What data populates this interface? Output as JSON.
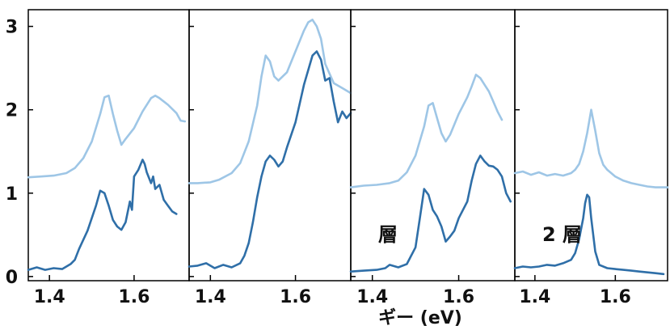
{
  "chart_data": {
    "type": "line",
    "xlabel": "ギー (eV)",
    "ylim": [
      -0.05,
      3.2
    ],
    "yticks": [
      0,
      1,
      2,
      3
    ],
    "xticks": [
      1.4,
      1.6
    ],
    "grid": false,
    "colors": {
      "light": "#9ec6e6",
      "dark": "#2f6fa8",
      "axis": "#000000"
    },
    "panels": [
      {
        "annotation": "",
        "xlim": [
          1.35,
          1.73
        ],
        "series": [
          {
            "name": "",
            "color": "light",
            "x": [
              1.35,
              1.38,
              1.41,
              1.44,
              1.46,
              1.48,
              1.5,
              1.52,
              1.53,
              1.54,
              1.55,
              1.56,
              1.57,
              1.58,
              1.6,
              1.62,
              1.64,
              1.65,
              1.66,
              1.68,
              1.7,
              1.71,
              1.72
            ],
            "y": [
              1.19,
              1.2,
              1.21,
              1.24,
              1.3,
              1.42,
              1.62,
              1.95,
              2.15,
              2.17,
              1.95,
              1.75,
              1.58,
              1.65,
              1.78,
              1.98,
              2.14,
              2.17,
              2.14,
              2.06,
              1.96,
              1.87,
              1.86
            ]
          },
          {
            "name": "",
            "color": "dark",
            "x": [
              1.35,
              1.37,
              1.39,
              1.41,
              1.43,
              1.45,
              1.46,
              1.47,
              1.49,
              1.51,
              1.52,
              1.53,
              1.54,
              1.55,
              1.56,
              1.57,
              1.58,
              1.59,
              1.595,
              1.6,
              1.61,
              1.62,
              1.625,
              1.63,
              1.64,
              1.645,
              1.65,
              1.66,
              1.67,
              1.68,
              1.69,
              1.7
            ],
            "y": [
              0.08,
              0.11,
              0.08,
              0.1,
              0.09,
              0.15,
              0.2,
              0.33,
              0.55,
              0.85,
              1.03,
              1.0,
              0.85,
              0.68,
              0.6,
              0.56,
              0.65,
              0.9,
              0.8,
              1.2,
              1.28,
              1.4,
              1.35,
              1.25,
              1.12,
              1.2,
              1.05,
              1.1,
              0.92,
              0.85,
              0.78,
              0.75
            ]
          }
        ]
      },
      {
        "annotation": "",
        "xlim": [
          1.35,
          1.73
        ],
        "series": [
          {
            "name": "",
            "color": "light",
            "x": [
              1.35,
              1.37,
              1.4,
              1.42,
              1.45,
              1.47,
              1.49,
              1.51,
              1.52,
              1.53,
              1.54,
              1.55,
              1.56,
              1.58,
              1.6,
              1.62,
              1.63,
              1.64,
              1.65,
              1.66,
              1.67,
              1.69,
              1.71,
              1.73
            ],
            "y": [
              1.12,
              1.12,
              1.13,
              1.16,
              1.24,
              1.36,
              1.62,
              2.05,
              2.4,
              2.65,
              2.58,
              2.4,
              2.35,
              2.45,
              2.7,
              2.95,
              3.05,
              3.08,
              3.0,
              2.85,
              2.55,
              2.32,
              2.26,
              2.2
            ]
          },
          {
            "name": "",
            "color": "dark",
            "x": [
              1.35,
              1.37,
              1.39,
              1.41,
              1.43,
              1.45,
              1.47,
              1.48,
              1.49,
              1.5,
              1.51,
              1.52,
              1.53,
              1.54,
              1.55,
              1.56,
              1.57,
              1.58,
              1.6,
              1.62,
              1.64,
              1.65,
              1.66,
              1.67,
              1.68,
              1.69,
              1.7,
              1.71,
              1.72,
              1.73
            ],
            "y": [
              0.12,
              0.13,
              0.16,
              0.1,
              0.14,
              0.11,
              0.16,
              0.25,
              0.4,
              0.65,
              0.95,
              1.2,
              1.38,
              1.45,
              1.4,
              1.32,
              1.38,
              1.55,
              1.85,
              2.3,
              2.65,
              2.7,
              2.6,
              2.35,
              2.38,
              2.1,
              1.85,
              1.98,
              1.9,
              1.96
            ]
          }
        ]
      },
      {
        "annotation": "層",
        "xlim": [
          1.35,
          1.73
        ],
        "series": [
          {
            "name": "",
            "color": "light",
            "x": [
              1.35,
              1.38,
              1.41,
              1.44,
              1.46,
              1.48,
              1.5,
              1.52,
              1.53,
              1.54,
              1.55,
              1.56,
              1.57,
              1.58,
              1.6,
              1.62,
              1.63,
              1.64,
              1.65,
              1.66,
              1.67,
              1.68,
              1.69,
              1.7
            ],
            "y": [
              1.07,
              1.09,
              1.1,
              1.12,
              1.15,
              1.25,
              1.45,
              1.8,
              2.05,
              2.08,
              1.9,
              1.72,
              1.62,
              1.7,
              1.95,
              2.15,
              2.28,
              2.42,
              2.38,
              2.3,
              2.22,
              2.1,
              1.98,
              1.88
            ]
          },
          {
            "name": "",
            "color": "dark",
            "x": [
              1.35,
              1.38,
              1.41,
              1.43,
              1.44,
              1.46,
              1.48,
              1.5,
              1.51,
              1.52,
              1.53,
              1.54,
              1.55,
              1.56,
              1.57,
              1.58,
              1.59,
              1.6,
              1.62,
              1.63,
              1.64,
              1.65,
              1.66,
              1.67,
              1.68,
              1.69,
              1.7,
              1.71,
              1.72
            ],
            "y": [
              0.06,
              0.07,
              0.08,
              0.1,
              0.14,
              0.11,
              0.15,
              0.35,
              0.7,
              1.05,
              0.98,
              0.8,
              0.72,
              0.6,
              0.42,
              0.48,
              0.55,
              0.7,
              0.9,
              1.15,
              1.35,
              1.45,
              1.38,
              1.33,
              1.32,
              1.28,
              1.2,
              1.0,
              0.9
            ]
          }
        ]
      },
      {
        "annotation": "2 層",
        "xlim": [
          1.35,
          1.73
        ],
        "series": [
          {
            "name": "",
            "color": "light",
            "x": [
              1.35,
              1.37,
              1.39,
              1.41,
              1.43,
              1.45,
              1.47,
              1.49,
              1.5,
              1.51,
              1.52,
              1.53,
              1.54,
              1.55,
              1.56,
              1.57,
              1.58,
              1.6,
              1.62,
              1.64,
              1.66,
              1.68,
              1.7,
              1.72,
              1.73
            ],
            "y": [
              1.24,
              1.26,
              1.22,
              1.25,
              1.21,
              1.23,
              1.21,
              1.24,
              1.28,
              1.35,
              1.5,
              1.72,
              2.0,
              1.75,
              1.48,
              1.34,
              1.28,
              1.2,
              1.15,
              1.12,
              1.1,
              1.08,
              1.07,
              1.07,
              1.07
            ]
          },
          {
            "name": "",
            "color": "dark",
            "x": [
              1.35,
              1.37,
              1.39,
              1.41,
              1.43,
              1.45,
              1.47,
              1.49,
              1.5,
              1.51,
              1.52,
              1.525,
              1.53,
              1.535,
              1.54,
              1.55,
              1.56,
              1.58,
              1.6,
              1.62,
              1.64,
              1.66,
              1.68,
              1.7,
              1.72
            ],
            "y": [
              0.1,
              0.12,
              0.11,
              0.12,
              0.14,
              0.13,
              0.16,
              0.2,
              0.28,
              0.45,
              0.7,
              0.88,
              0.98,
              0.95,
              0.7,
              0.3,
              0.14,
              0.1,
              0.09,
              0.08,
              0.07,
              0.06,
              0.05,
              0.04,
              0.03
            ]
          }
        ]
      }
    ]
  }
}
